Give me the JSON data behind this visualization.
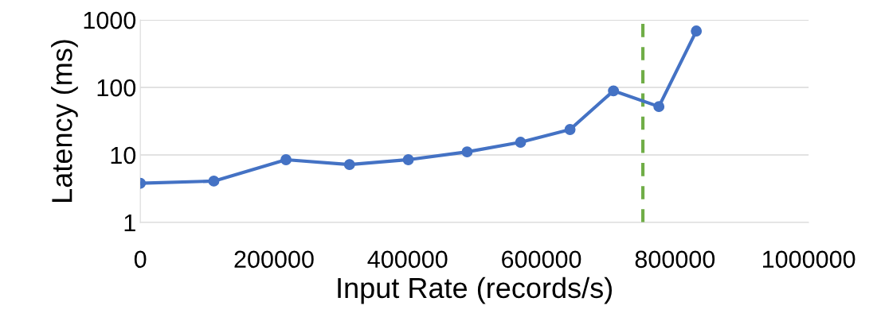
{
  "chart_data": {
    "type": "line",
    "xlabel": "Input Rate (records/s)",
    "ylabel": "Latency (ms)",
    "x": [
      0,
      110000,
      218000,
      313000,
      401000,
      489000,
      569000,
      643000,
      708000,
      776000,
      832000
    ],
    "series": [
      {
        "color": "#4472c4",
        "values": [
          3.8,
          4.1,
          8.5,
          7.2,
          8.5,
          11.1,
          15.4,
          23.8,
          89,
          52,
          684
        ]
      }
    ],
    "xlim": [
      0,
      1000000
    ],
    "xticks": [
      0,
      200000,
      400000,
      600000,
      800000,
      1000000
    ],
    "ylim": [
      1,
      1000
    ],
    "yticks": [
      1,
      10,
      100,
      1000
    ],
    "log": "y",
    "grid": "y",
    "marker": "circle",
    "line_style": "solid",
    "legend": false,
    "ref_lines": [
      {
        "axis": "x",
        "value": 752000,
        "color": "#70ad47",
        "line_style": "dashed"
      }
    ]
  }
}
